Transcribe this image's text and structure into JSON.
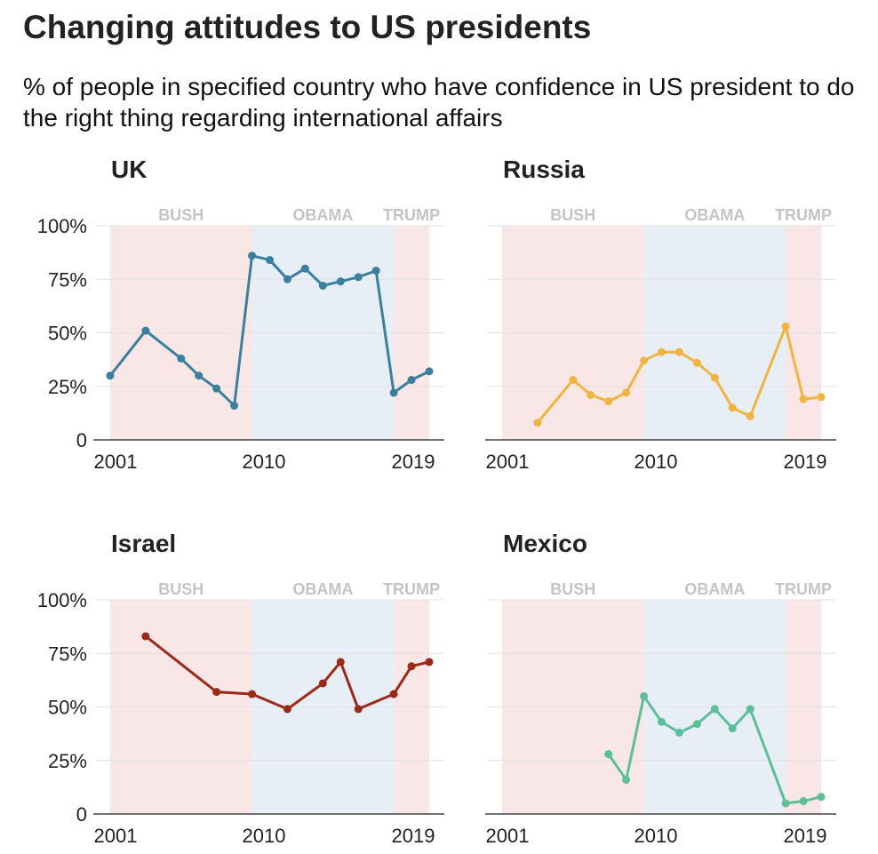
{
  "title": "Changing attitudes to US presidents",
  "subtitle": "% of people in specified country who have confidence in US president to do the right thing regarding international affairs",
  "colors": {
    "bush": "#f9e7e7",
    "obama": "#e8eef6",
    "grid": "#e2e2e2",
    "axis": "#444444"
  },
  "chart_data": [
    {
      "type": "line",
      "title": "UK",
      "color": "#3b7f9e",
      "xlim": [
        2001,
        2019
      ],
      "ylim": [
        0,
        100
      ],
      "xticks": [
        "2001",
        "2010",
        "2019"
      ],
      "yticks": [
        "0",
        "25%",
        "50%",
        "75%",
        "100%"
      ],
      "eras": [
        {
          "label": "BUSH",
          "from": 2001,
          "to": 2009
        },
        {
          "label": "OBAMA",
          "from": 2009,
          "to": 2017
        },
        {
          "label": "TRUMP",
          "from": 2017,
          "to": 2019
        }
      ],
      "x": [
        2001,
        2003,
        2005,
        2006,
        2007,
        2008,
        2009,
        2010,
        2011,
        2012,
        2013,
        2014,
        2015,
        2016,
        2017,
        2018,
        2019
      ],
      "y": [
        30,
        51,
        38,
        30,
        24,
        16,
        86,
        84,
        75,
        80,
        72,
        74,
        76,
        79,
        22,
        28,
        32
      ]
    },
    {
      "type": "line",
      "title": "Russia",
      "color": "#f0b440",
      "xlim": [
        2001,
        2019
      ],
      "ylim": [
        0,
        100
      ],
      "xticks": [
        "2001",
        "2010",
        "2019"
      ],
      "yticks": [],
      "eras": [
        {
          "label": "BUSH",
          "from": 2001,
          "to": 2009
        },
        {
          "label": "OBAMA",
          "from": 2009,
          "to": 2017
        },
        {
          "label": "TRUMP",
          "from": 2017,
          "to": 2019
        }
      ],
      "x": [
        2003,
        2005,
        2006,
        2007,
        2008,
        2009,
        2010,
        2011,
        2012,
        2013,
        2014,
        2015,
        2017,
        2018,
        2019
      ],
      "y": [
        8,
        28,
        21,
        18,
        22,
        37,
        41,
        41,
        36,
        29,
        15,
        11,
        53,
        19,
        20
      ]
    },
    {
      "type": "line",
      "title": "Israel",
      "color": "#9a2a17",
      "xlim": [
        2001,
        2019
      ],
      "ylim": [
        0,
        100
      ],
      "xticks": [
        "2001",
        "2010",
        "2019"
      ],
      "yticks": [
        "0",
        "25%",
        "50%",
        "75%",
        "100%"
      ],
      "eras": [
        {
          "label": "BUSH",
          "from": 2001,
          "to": 2009
        },
        {
          "label": "OBAMA",
          "from": 2009,
          "to": 2017
        },
        {
          "label": "TRUMP",
          "from": 2017,
          "to": 2019
        }
      ],
      "x": [
        2003,
        2007,
        2009,
        2011,
        2013,
        2014,
        2015,
        2017,
        2018,
        2019
      ],
      "y": [
        83,
        57,
        56,
        49,
        61,
        71,
        49,
        56,
        69,
        71
      ]
    },
    {
      "type": "line",
      "title": "Mexico",
      "color": "#5cbf98",
      "xlim": [
        2001,
        2019
      ],
      "ylim": [
        0,
        100
      ],
      "xticks": [
        "2001",
        "2010",
        "2019"
      ],
      "yticks": [],
      "eras": [
        {
          "label": "BUSH",
          "from": 2001,
          "to": 2009
        },
        {
          "label": "OBAMA",
          "from": 2009,
          "to": 2017
        },
        {
          "label": "TRUMP",
          "from": 2017,
          "to": 2019
        }
      ],
      "x": [
        2007,
        2008,
        2009,
        2010,
        2011,
        2012,
        2013,
        2014,
        2015,
        2017,
        2018,
        2019
      ],
      "y": [
        28,
        16,
        55,
        43,
        38,
        42,
        49,
        40,
        49,
        5,
        6,
        8
      ]
    }
  ]
}
